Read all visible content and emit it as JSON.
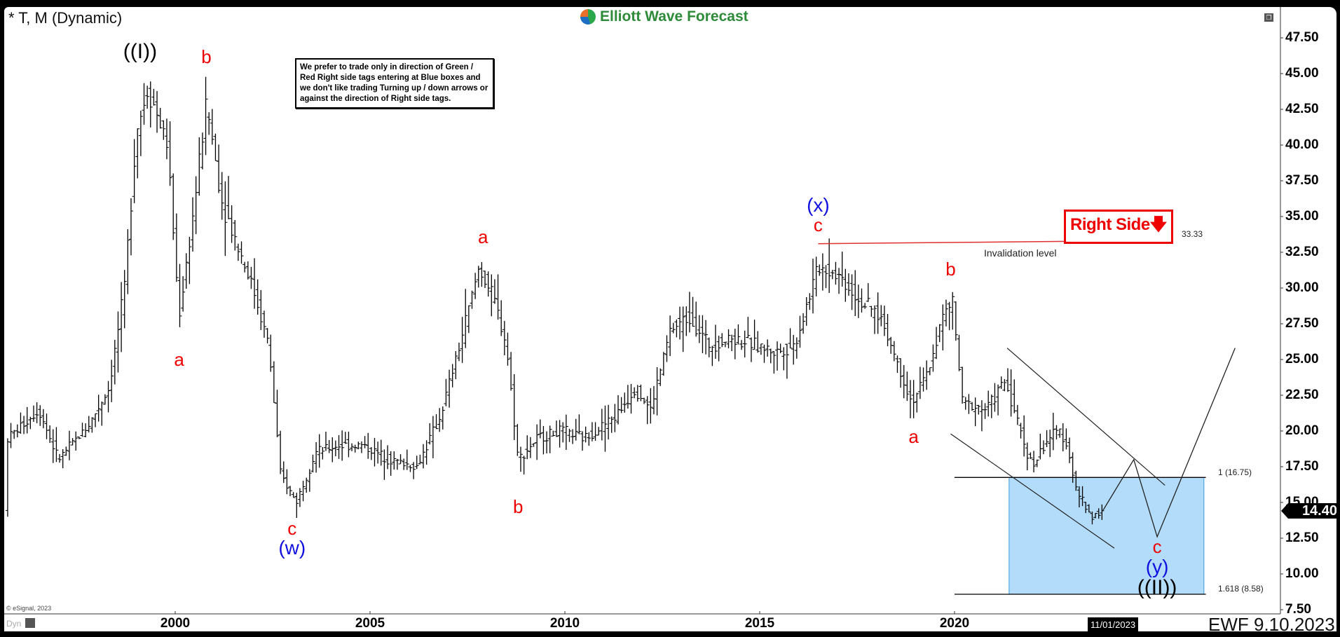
{
  "header": {
    "symbol_title": "* T, M (Dynamic)",
    "brand": "Elliott Wave Forecast",
    "restore_icon": "window-restore-icon"
  },
  "note": "We prefer to trade only in direction of Green / Red Right side tags entering at Blue boxes and we don't like trading Turning up / down arrows or against the direction of Right side tags.",
  "right_side_tag": {
    "label": "Right Side",
    "arrow": "down-arrow-icon",
    "color": "#ee0000"
  },
  "invalidation": {
    "label": "Invalidation level",
    "value_label": "33.33",
    "value": 33.33,
    "from_year": 2016.5,
    "to_year": 2025.45
  },
  "blue_box": {
    "color": "#b3dcfa",
    "upper": 16.75,
    "lower": 8.58,
    "upper_label": "1 (16.75)",
    "lower_label": "1.618 (8.58)"
  },
  "current_price": "14.40",
  "current_date": "11/01/2023",
  "footer": {
    "stamp": "EWF 9.10.2023",
    "copyright": "© eSignal, 2023",
    "mode": "Dyn"
  },
  "wave_labels": [
    {
      "text": "((I))",
      "style": "blk",
      "year": 1999.1,
      "price": 46.5
    },
    {
      "text": "a",
      "style": "red",
      "year": 2000.1,
      "price": 25.0
    },
    {
      "text": "b",
      "style": "red",
      "year": 2000.8,
      "price": 46.2
    },
    {
      "text": "c",
      "style": "red",
      "year": 2003.0,
      "price": 13.2
    },
    {
      "text": "(w)",
      "style": "blue",
      "year": 2003.0,
      "price": 11.8
    },
    {
      "text": "a",
      "style": "red",
      "year": 2007.9,
      "price": 33.6
    },
    {
      "text": "b",
      "style": "red",
      "year": 2008.8,
      "price": 14.7
    },
    {
      "text": "(x)",
      "style": "blue",
      "year": 2016.5,
      "price": 35.8
    },
    {
      "text": "c",
      "style": "red",
      "year": 2016.5,
      "price": 34.4
    },
    {
      "text": "a",
      "style": "red",
      "year": 2018.95,
      "price": 19.6
    },
    {
      "text": "b",
      "style": "red",
      "year": 2019.9,
      "price": 31.3
    },
    {
      "text": "c",
      "style": "red",
      "year": 2025.2,
      "price": 11.9
    },
    {
      "text": "(y)",
      "style": "blue",
      "year": 2025.2,
      "price": 10.5
    },
    {
      "text": "((II))",
      "style": "blk",
      "year": 2025.2,
      "price": 9.0
    }
  ],
  "chart_data": {
    "type": "ohlc",
    "title": "* T, M (Dynamic)",
    "interval": "monthly",
    "y_axis": {
      "range": [
        7.5,
        48.5
      ],
      "ticks": [
        "47.50",
        "45.00",
        "42.50",
        "40.00",
        "37.50",
        "35.00",
        "32.50",
        "30.00",
        "27.50",
        "25.00",
        "22.50",
        "20.00",
        "17.50",
        "15.00",
        "12.50",
        "10.00",
        "7.50"
      ],
      "position": "right"
    },
    "x_axis": {
      "range": [
        1995.6,
        2028.6
      ],
      "ticks": [
        "2000",
        "2005",
        "2010",
        "2015",
        "2020"
      ]
    },
    "grid": false,
    "price_path": [
      [
        1995.7,
        19.5
      ],
      [
        1996.5,
        21.5
      ],
      [
        1997.0,
        18.0
      ],
      [
        1997.8,
        20.5
      ],
      [
        1998.3,
        23.0
      ],
      [
        1998.7,
        30.0
      ],
      [
        1999.0,
        41.0
      ],
      [
        1999.3,
        44.0
      ],
      [
        1999.8,
        40.0
      ],
      [
        2000.1,
        28.0
      ],
      [
        2000.5,
        36.0
      ],
      [
        2000.8,
        43.0
      ],
      [
        2001.2,
        36.0
      ],
      [
        2001.6,
        33.0
      ],
      [
        2002.0,
        30.0
      ],
      [
        2002.4,
        26.0
      ],
      [
        2002.7,
        17.0
      ],
      [
        2003.1,
        15.0
      ],
      [
        2003.6,
        18.5
      ],
      [
        2004.2,
        19.0
      ],
      [
        2004.8,
        19.0
      ],
      [
        2005.5,
        18.0
      ],
      [
        2006.2,
        17.5
      ],
      [
        2006.8,
        21.0
      ],
      [
        2007.3,
        26.0
      ],
      [
        2007.8,
        31.5
      ],
      [
        2008.2,
        29.0
      ],
      [
        2008.5,
        26.0
      ],
      [
        2008.8,
        18.0
      ],
      [
        2009.3,
        19.5
      ],
      [
        2009.9,
        20.0
      ],
      [
        2010.5,
        19.5
      ],
      [
        2011.3,
        21.0
      ],
      [
        2011.8,
        23.0
      ],
      [
        2012.2,
        21.5
      ],
      [
        2012.7,
        27.0
      ],
      [
        2013.2,
        28.0
      ],
      [
        2013.7,
        26.0
      ],
      [
        2014.3,
        26.5
      ],
      [
        2014.9,
        26.0
      ],
      [
        2015.4,
        25.5
      ],
      [
        2015.9,
        26.0
      ],
      [
        2016.5,
        31.5
      ],
      [
        2017.0,
        31.0
      ],
      [
        2017.6,
        29.0
      ],
      [
        2018.1,
        28.0
      ],
      [
        2018.5,
        25.0
      ],
      [
        2018.9,
        22.0
      ],
      [
        2019.3,
        24.0
      ],
      [
        2019.7,
        28.0
      ],
      [
        2019.95,
        29.0
      ],
      [
        2020.2,
        22.0
      ],
      [
        2020.8,
        21.5
      ],
      [
        2021.3,
        23.5
      ],
      [
        2021.8,
        19.0
      ],
      [
        2022.0,
        17.5
      ],
      [
        2022.4,
        19.5
      ],
      [
        2022.7,
        20.0
      ],
      [
        2022.9,
        19.0
      ],
      [
        2023.1,
        16.0
      ],
      [
        2023.5,
        14.0
      ],
      [
        2023.8,
        14.4
      ]
    ],
    "projection": [
      [
        2023.8,
        14.4
      ],
      [
        2024.6,
        18.0
      ],
      [
        2025.2,
        12.6
      ],
      [
        2027.2,
        25.8
      ]
    ],
    "channel": {
      "upper": [
        [
          2021.35,
          25.8
        ],
        [
          2025.4,
          16.2
        ]
      ],
      "lower": [
        [
          2019.9,
          19.8
        ],
        [
          2024.1,
          11.8
        ]
      ]
    }
  }
}
